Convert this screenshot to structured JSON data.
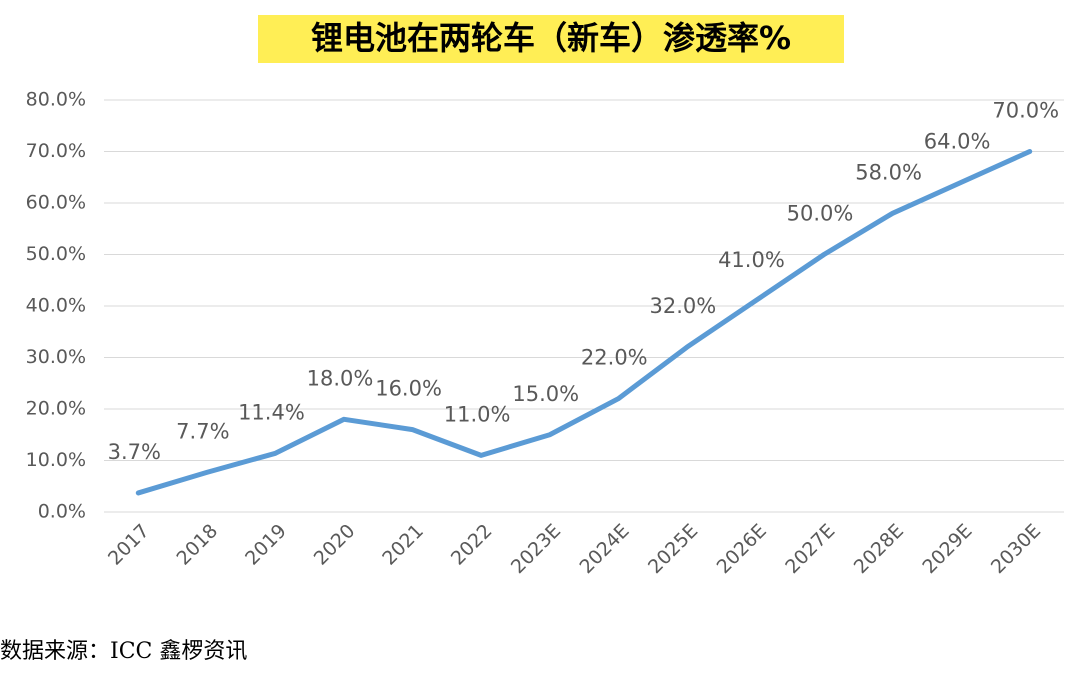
{
  "chart_data": {
    "type": "line",
    "title": "锂电池在两轮车（新车）渗透率%",
    "categories": [
      "2017",
      "2018",
      "2019",
      "2020",
      "2021",
      "2022",
      "2023E",
      "2024E",
      "2025E",
      "2026E",
      "2027E",
      "2028E",
      "2029E",
      "2030E"
    ],
    "series": [
      {
        "name": "渗透率",
        "color": "#5b9bd5",
        "values": [
          3.7,
          7.7,
          11.4,
          18.0,
          16.0,
          11.0,
          15.0,
          22.0,
          32.0,
          41.0,
          50.0,
          58.0,
          64.0,
          70.0
        ],
        "value_labels": [
          "3.7%",
          "7.7%",
          "11.4%",
          "18.0%",
          "16.0%",
          "11.0%",
          "15.0%",
          "22.0%",
          "32.0%",
          "41.0%",
          "50.0%",
          "58.0%",
          "64.0%",
          "70.0%"
        ]
      }
    ],
    "ylim": [
      0,
      80
    ],
    "yticks": [
      {
        "value": 0,
        "label": "0.0%"
      },
      {
        "value": 10,
        "label": "10.0%"
      },
      {
        "value": 20,
        "label": "20.0%"
      },
      {
        "value": 30,
        "label": "30.0%"
      },
      {
        "value": 40,
        "label": "40.0%"
      },
      {
        "value": 50,
        "label": "50.0%"
      },
      {
        "value": 60,
        "label": "60.0%"
      },
      {
        "value": 70,
        "label": "70.0%"
      },
      {
        "value": 80,
        "label": "80.0%"
      }
    ],
    "grid": true,
    "source": "数据来源：ICC 鑫椤资讯"
  }
}
